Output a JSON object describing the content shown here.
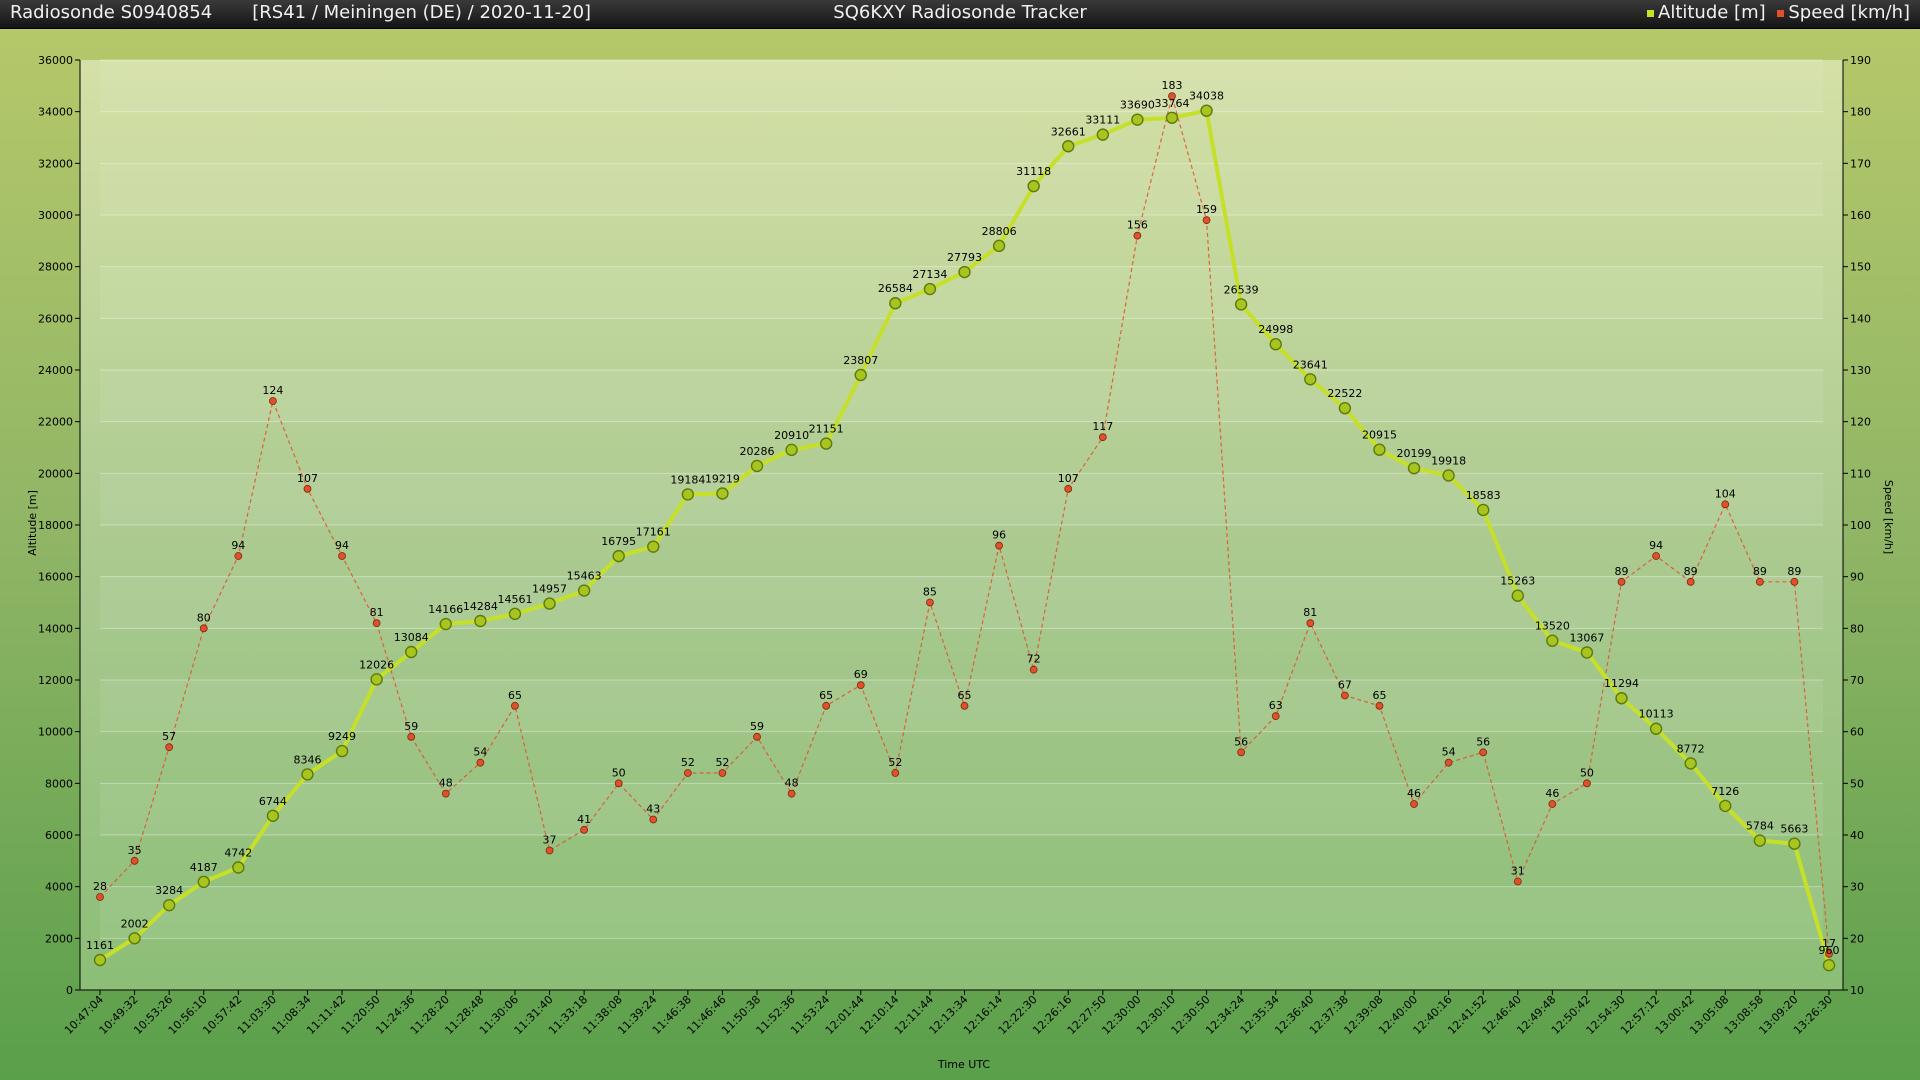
{
  "titlebar": {
    "left": "Radiosonde S0940854       [RS41 / Meiningen (DE) / 2020-11-20]",
    "center": "SQ6KXY Radiosonde Tracker",
    "legend_altitude": "Altitude [m]",
    "legend_speed": "Speed [km/h]"
  },
  "colors": {
    "altitude": "#c6e02a",
    "speed": "#e0502a"
  },
  "chart_data": {
    "type": "line",
    "title": "SQ6KXY Radiosonde Tracker",
    "xlabel": "Time UTC",
    "ylabel": "Altitude [m]",
    "y2label": "Speed [km/h]",
    "ylim": [
      0,
      36000
    ],
    "y2lim": [
      10,
      190
    ],
    "yticks": [
      0,
      2000,
      4000,
      6000,
      8000,
      10000,
      12000,
      14000,
      16000,
      18000,
      20000,
      22000,
      24000,
      26000,
      28000,
      30000,
      32000,
      34000,
      36000
    ],
    "y2ticks": [
      10,
      20,
      30,
      40,
      50,
      60,
      70,
      80,
      90,
      100,
      110,
      120,
      130,
      140,
      150,
      160,
      170,
      180,
      190
    ],
    "grid": true,
    "legend_position": "top-right",
    "x": [
      "10:47:04",
      "10:49:32",
      "10:53:26",
      "10:56:10",
      "10:57:42",
      "11:03:30",
      "11:08:34",
      "11:11:42",
      "11:20:50",
      "11:24:36",
      "11:28:20",
      "11:28:48",
      "11:30:06",
      "11:31:40",
      "11:33:18",
      "11:38:08",
      "11:39:24",
      "11:46:38",
      "11:46:46",
      "11:50:38",
      "11:52:36",
      "11:53:24",
      "12:01:44",
      "12:10:14",
      "12:11:44",
      "12:13:34",
      "12:16:14",
      "12:22:30",
      "12:26:16",
      "12:27:50",
      "12:30:00",
      "12:30:10",
      "12:30:50",
      "12:34:24",
      "12:35:34",
      "12:36:40",
      "12:37:38",
      "12:39:08",
      "12:40:00",
      "12:40:16",
      "12:41:52",
      "12:46:40",
      "12:49:48",
      "12:50:42",
      "12:54:30",
      "12:57:12",
      "13:00:42",
      "13:05:08",
      "13:08:58",
      "13:09:20",
      "13:26:30"
    ],
    "series": [
      {
        "name": "Altitude [m]",
        "axis": "left",
        "values": [
          1161,
          2002,
          3284,
          4187,
          4742,
          6744,
          8346,
          9249,
          12026,
          13084,
          14166,
          14284,
          14561,
          14957,
          15463,
          16795,
          17161,
          19184,
          19219,
          20286,
          20910,
          21151,
          23807,
          26584,
          27134,
          27793,
          28806,
          31118,
          32661,
          33111,
          33690,
          33764,
          34038,
          26539,
          24998,
          23641,
          22522,
          20915,
          20199,
          19918,
          18583,
          15263,
          13520,
          13067,
          11294,
          10113,
          8772,
          7126,
          5784,
          5663,
          960
        ]
      },
      {
        "name": "Speed [km/h]",
        "axis": "right",
        "values": [
          28,
          35,
          57,
          80,
          94,
          124,
          107,
          94,
          81,
          59,
          48,
          54,
          65,
          37,
          41,
          50,
          43,
          52,
          52,
          59,
          48,
          65,
          69,
          52,
          85,
          65,
          96,
          72,
          107,
          117,
          156,
          183,
          159,
          56,
          63,
          81,
          67,
          65,
          46,
          54,
          56,
          31,
          46,
          50,
          89,
          94,
          89,
          104,
          89,
          89,
          17
        ]
      }
    ]
  }
}
